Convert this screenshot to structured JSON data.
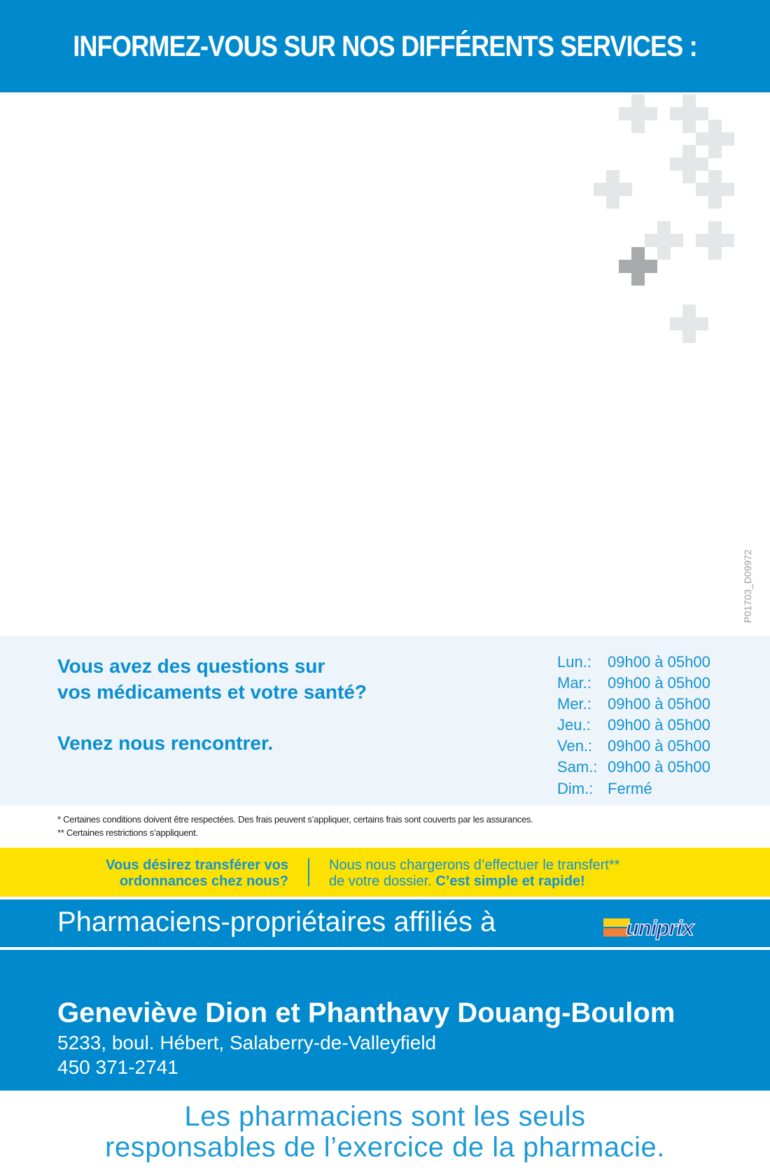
{
  "header": {
    "title": "INFORMEZ-VOUS SUR NOS DIFFÉRENTS SERVICES :"
  },
  "colors": {
    "brand_blue": "#0089cc",
    "yellow": "#fde100",
    "light_panel": "#edf4fa",
    "cross_light": "#e5e6e8",
    "cross_dark": "#a9aaac"
  },
  "code": "P01703_D09972",
  "info": {
    "question_lines": [
      "Vous avez des questions sur",
      "vos médicaments et votre santé?"
    ],
    "invite": "Venez nous rencontrer.",
    "hours": [
      {
        "day": "Lun.:",
        "time": "09h00 à 05h00"
      },
      {
        "day": "Mar.:",
        "time": "09h00 à 05h00"
      },
      {
        "day": "Mer.:",
        "time": "09h00 à 05h00"
      },
      {
        "day": "Jeu.:",
        "time": "09h00 à 05h00"
      },
      {
        "day": "Ven.:",
        "time": "09h00 à 05h00"
      },
      {
        "day": "Sam.:",
        "time": "09h00 à 05h00"
      },
      {
        "day": "Dim.:",
        "time": "Fermé"
      }
    ]
  },
  "footnotes": [
    "* Certaines conditions doivent être respectées. Des frais peuvent s’appliquer, certains frais sont couverts par les assurances.",
    "** Certaines restrictions s’appliquent."
  ],
  "transfer": {
    "question_lines": [
      "Vous désirez transférer vos",
      "ordonnances chez nous?"
    ],
    "answer_line1": "Nous nous chargerons d’effectuer le transfert**",
    "answer_line2": "de votre dossier.",
    "answer_emphasis": "C’est simple et rapide!"
  },
  "affiliation": {
    "label": "Pharmaciens-propriétaires affiliés à",
    "logo_text": "uniprix"
  },
  "pharmacy": {
    "owners": "Geneviève Dion et Phanthavy Douang-Boulom",
    "address": "5233, boul. Hébert, Salaberry-de-Valleyfield",
    "phone": "450 371-2741"
  },
  "tagline": [
    "Les pharmaciens sont les seuls",
    "responsables de l’exercice de la pharmacie."
  ]
}
